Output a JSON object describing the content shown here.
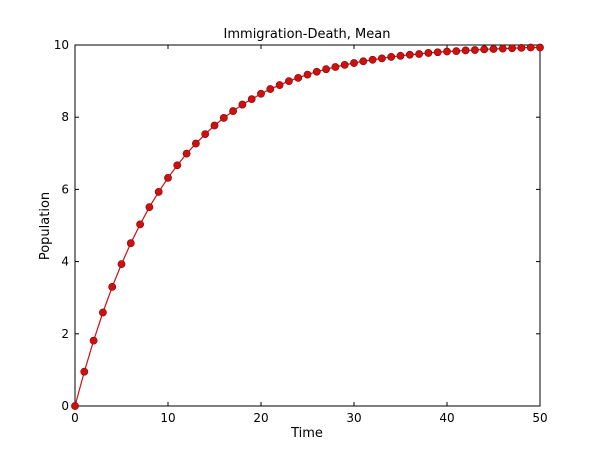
{
  "chart_data": {
    "type": "line",
    "title": "Immigration-Death, Mean",
    "xlabel": "Time",
    "ylabel": "Population",
    "xlim": [
      0,
      50
    ],
    "ylim": [
      0,
      10
    ],
    "xticks": [
      "0",
      "10",
      "20",
      "30",
      "40",
      "50"
    ],
    "yticks": [
      "0",
      "2",
      "4",
      "6",
      "8",
      "10"
    ],
    "grid": false,
    "legend": "none",
    "series": [
      {
        "color": "#cc1111",
        "marker": "circle",
        "x": [
          0,
          1,
          2,
          3,
          4,
          5,
          6,
          7,
          8,
          9,
          10,
          11,
          12,
          13,
          14,
          15,
          16,
          17,
          18,
          19,
          20,
          21,
          22,
          23,
          24,
          25,
          26,
          27,
          28,
          29,
          30,
          31,
          32,
          33,
          34,
          35,
          36,
          37,
          38,
          39,
          40,
          41,
          42,
          43,
          44,
          45,
          46,
          47,
          48,
          49,
          50
        ],
        "y": [
          0,
          0.95,
          1.81,
          2.59,
          3.3,
          3.93,
          4.51,
          5.03,
          5.51,
          5.93,
          6.32,
          6.67,
          6.99,
          7.27,
          7.53,
          7.77,
          7.98,
          8.17,
          8.35,
          8.5,
          8.65,
          8.78,
          8.89,
          9.0,
          9.09,
          9.18,
          9.26,
          9.33,
          9.39,
          9.45,
          9.5,
          9.55,
          9.59,
          9.63,
          9.67,
          9.7,
          9.73,
          9.75,
          9.78,
          9.8,
          9.82,
          9.83,
          9.85,
          9.86,
          9.88,
          9.89,
          9.9,
          9.91,
          9.92,
          9.93,
          9.93
        ]
      }
    ]
  }
}
